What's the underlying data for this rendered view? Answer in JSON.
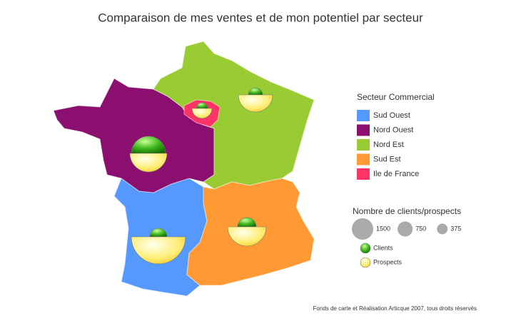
{
  "chart_data": {
    "type": "bubble-map",
    "title": "Comparaison de mes ventes et de mon potentiel par secteur",
    "legend_title": "Secteur Commercial",
    "categories": [
      "Sud Ouest",
      "Nord Ouest",
      "Nord Est",
      "Sud Est",
      "Ile de France"
    ],
    "colors": [
      "#5599ff",
      "#8b0f6e",
      "#99cc33",
      "#ff9933",
      "#ff3366"
    ],
    "series": [
      {
        "name": "Clients",
        "color": "#33a81a",
        "values": [
          960,
          3840,
          670,
          1130,
          430
        ]
      },
      {
        "name": "Prospects",
        "color": "#ffee66",
        "values": [
          9600,
          4500,
          3840,
          4860,
          1300
        ]
      }
    ],
    "size_legend": {
      "title": "Nombre de clients/prospects",
      "values": [
        1500,
        750,
        375
      ]
    },
    "footnote": "Fonds de carte et Réalisation Articque 2007, tous droits réservés"
  }
}
